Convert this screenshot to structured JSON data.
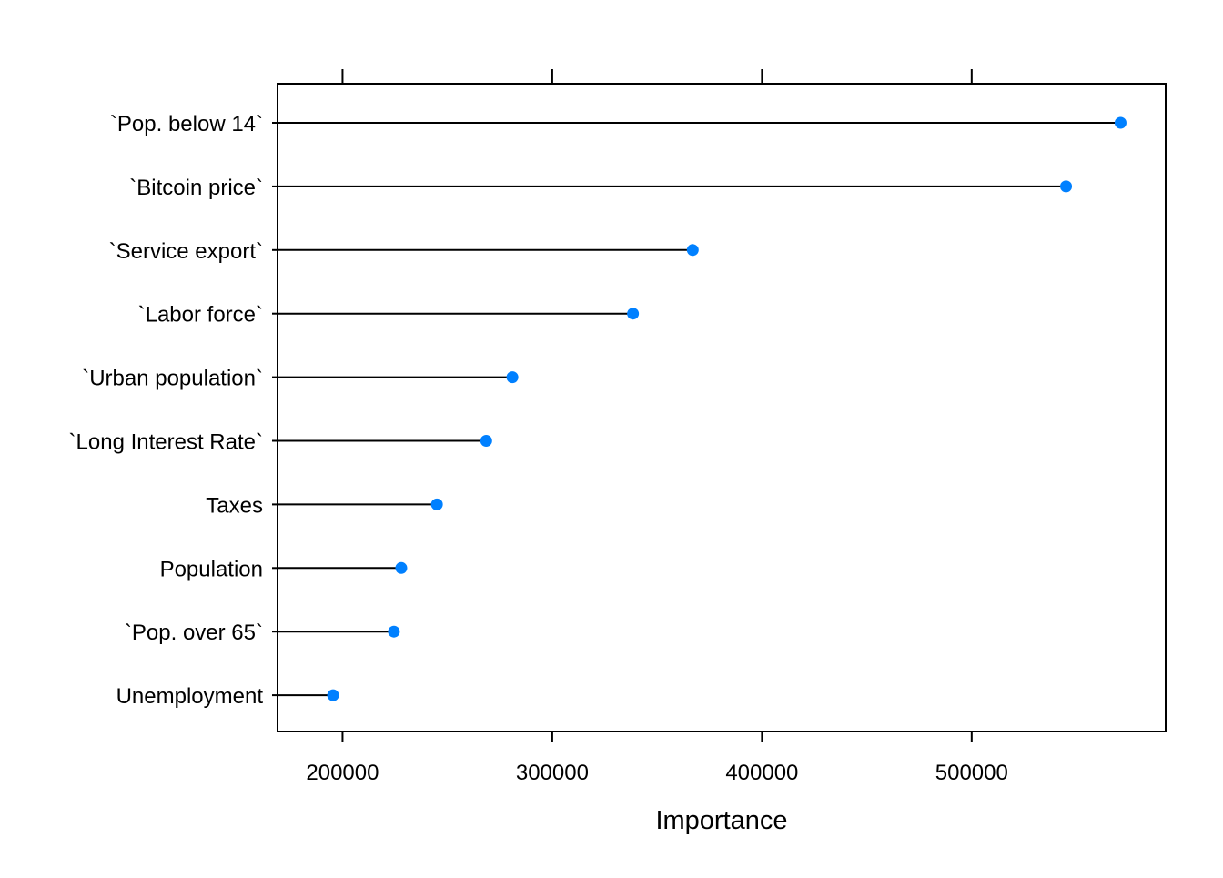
{
  "chart_data": {
    "type": "scatter",
    "style": "dot-plot-with-leader-lines",
    "orientation": "horizontal",
    "title": "",
    "xlabel": "Importance",
    "ylabel": "",
    "categories": [
      "`Pop. below 14`",
      "`Bitcoin price`",
      "`Service export`",
      "`Labor force`",
      "`Urban population`",
      "`Long Interest Rate`",
      "Taxes",
      "Population",
      "`Pop. over 65`",
      "Unemployment"
    ],
    "series": [
      {
        "values": [
          571000,
          545000,
          367000,
          338500,
          281000,
          268500,
          245000,
          228000,
          224500,
          195500
        ]
      }
    ],
    "xlim": [
      169000,
      592500
    ],
    "xticks": [
      200000,
      300000,
      400000,
      500000
    ],
    "xtick_labels": [
      "200000",
      "300000",
      "400000",
      "500000"
    ],
    "ticks_on_top": true,
    "grid": false,
    "legend": "none",
    "colors": {
      "point": "#0080ff",
      "line": "#000000",
      "frame": "#000000"
    }
  }
}
